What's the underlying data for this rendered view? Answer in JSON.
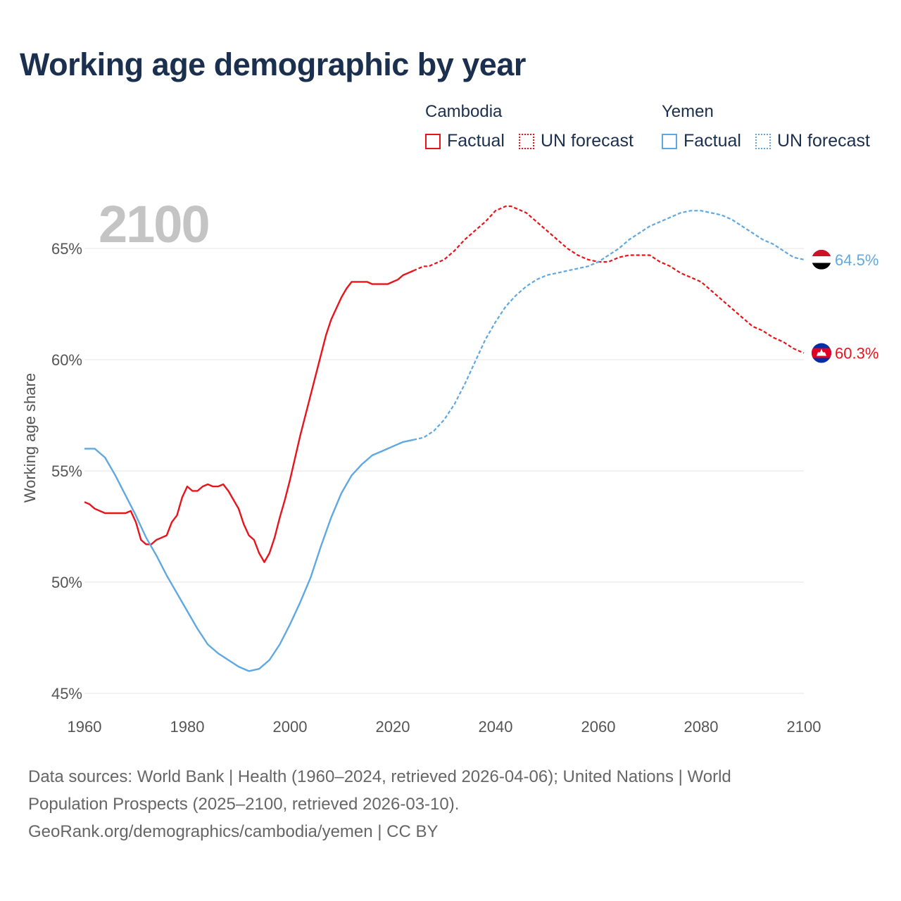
{
  "title": "Working age demographic by year",
  "year_display": "2100",
  "legend": {
    "groups": [
      {
        "name": "Cambodia",
        "color": "#e8141b",
        "factual_label": "Factual",
        "forecast_label": "UN forecast"
      },
      {
        "name": "Yemen",
        "color": "#5fa8e2",
        "factual_label": "Factual",
        "forecast_label": "UN forecast"
      }
    ]
  },
  "end_labels": {
    "cambodia": "60.3%",
    "yemen": "64.5%"
  },
  "footer": {
    "line1": "Data sources: World Bank | Health (1960–2024, retrieved 2026-04-06); United Nations | World",
    "line2": "Population Prospects (2025–2100, retrieved 2026-03-10).",
    "line3": "GeoRank.org/demographics/cambodia/yemen | CC BY"
  },
  "colors": {
    "cambodia": "#e8141b",
    "yemen": "#5fa8e2",
    "title": "#1b2f4e",
    "grid": "#e6e6e6",
    "axis_text": "#555555",
    "watermark": "#c4c4c4"
  },
  "chart_data": {
    "type": "line",
    "title": "Working age demographic by year",
    "xlabel": "",
    "ylabel": "Working age share",
    "xlim": [
      1960,
      2100
    ],
    "ylim": [
      45,
      67
    ],
    "x_ticks": [
      1960,
      1980,
      2000,
      2020,
      2040,
      2060,
      2080,
      2100
    ],
    "y_ticks": [
      45,
      50,
      55,
      60,
      65
    ],
    "y_tick_labels": [
      "45%",
      "50%",
      "55%",
      "60%",
      "65%"
    ],
    "factual_range": [
      1960,
      2024
    ],
    "forecast_range": [
      2024,
      2100
    ],
    "series": [
      {
        "name": "Cambodia",
        "color": "#e8141b",
        "x": [
          1960,
          1961,
          1962,
          1963,
          1964,
          1965,
          1966,
          1967,
          1968,
          1969,
          1970,
          1971,
          1972,
          1973,
          1974,
          1975,
          1976,
          1977,
          1978,
          1979,
          1980,
          1981,
          1982,
          1983,
          1984,
          1985,
          1986,
          1987,
          1988,
          1989,
          1990,
          1991,
          1992,
          1993,
          1994,
          1995,
          1996,
          1997,
          1998,
          1999,
          2000,
          2001,
          2002,
          2003,
          2004,
          2005,
          2006,
          2007,
          2008,
          2009,
          2010,
          2011,
          2012,
          2013,
          2014,
          2015,
          2016,
          2017,
          2018,
          2019,
          2020,
          2021,
          2022,
          2023,
          2024,
          2025,
          2026,
          2027,
          2028,
          2029,
          2030,
          2032,
          2034,
          2036,
          2038,
          2040,
          2041,
          2042,
          2043,
          2044,
          2046,
          2048,
          2050,
          2052,
          2054,
          2056,
          2058,
          2060,
          2062,
          2064,
          2066,
          2068,
          2070,
          2072,
          2074,
          2076,
          2078,
          2080,
          2082,
          2084,
          2086,
          2088,
          2090,
          2092,
          2094,
          2096,
          2098,
          2100
        ],
        "y": [
          53.6,
          53.5,
          53.3,
          53.2,
          53.1,
          53.1,
          53.1,
          53.1,
          53.1,
          53.2,
          52.7,
          51.9,
          51.7,
          51.7,
          51.9,
          52.0,
          52.1,
          52.7,
          53.0,
          53.8,
          54.3,
          54.1,
          54.1,
          54.3,
          54.4,
          54.3,
          54.3,
          54.4,
          54.1,
          53.7,
          53.3,
          52.6,
          52.1,
          51.9,
          51.3,
          50.9,
          51.3,
          52.0,
          52.9,
          53.7,
          54.6,
          55.6,
          56.6,
          57.5,
          58.4,
          59.3,
          60.2,
          61.1,
          61.8,
          62.3,
          62.8,
          63.2,
          63.5,
          63.5,
          63.5,
          63.5,
          63.4,
          63.4,
          63.4,
          63.4,
          63.5,
          63.6,
          63.8,
          63.9,
          64.0,
          64.1,
          64.2,
          64.2,
          64.3,
          64.4,
          64.5,
          64.9,
          65.4,
          65.8,
          66.2,
          66.7,
          66.8,
          66.9,
          66.9,
          66.8,
          66.6,
          66.2,
          65.8,
          65.4,
          65.0,
          64.7,
          64.5,
          64.4,
          64.4,
          64.6,
          64.7,
          64.7,
          64.7,
          64.4,
          64.2,
          63.9,
          63.7,
          63.5,
          63.1,
          62.7,
          62.3,
          61.9,
          61.5,
          61.3,
          61.0,
          60.8,
          60.5,
          60.3
        ]
      },
      {
        "name": "Yemen",
        "color": "#5fa8e2",
        "x": [
          1960,
          1962,
          1964,
          1966,
          1968,
          1970,
          1972,
          1974,
          1976,
          1978,
          1980,
          1982,
          1984,
          1986,
          1988,
          1990,
          1992,
          1994,
          1996,
          1998,
          2000,
          2002,
          2004,
          2006,
          2008,
          2010,
          2012,
          2014,
          2016,
          2018,
          2020,
          2022,
          2024,
          2026,
          2028,
          2030,
          2032,
          2034,
          2036,
          2038,
          2040,
          2042,
          2044,
          2046,
          2048,
          2050,
          2052,
          2054,
          2056,
          2058,
          2060,
          2062,
          2064,
          2066,
          2068,
          2070,
          2072,
          2074,
          2076,
          2078,
          2080,
          2082,
          2084,
          2086,
          2088,
          2090,
          2092,
          2094,
          2096,
          2098,
          2100
        ],
        "y": [
          56.0,
          56.0,
          55.6,
          54.8,
          53.9,
          53.0,
          52.0,
          51.2,
          50.3,
          49.5,
          48.7,
          47.9,
          47.2,
          46.8,
          46.5,
          46.2,
          46.0,
          46.1,
          46.5,
          47.2,
          48.1,
          49.1,
          50.2,
          51.6,
          52.9,
          54.0,
          54.8,
          55.3,
          55.7,
          55.9,
          56.1,
          56.3,
          56.4,
          56.5,
          56.8,
          57.3,
          58.0,
          58.9,
          59.9,
          60.9,
          61.7,
          62.4,
          62.9,
          63.3,
          63.6,
          63.8,
          63.9,
          64.0,
          64.1,
          64.2,
          64.4,
          64.7,
          65.0,
          65.4,
          65.7,
          66.0,
          66.2,
          66.4,
          66.6,
          66.7,
          66.7,
          66.6,
          66.5,
          66.3,
          66.0,
          65.7,
          65.4,
          65.2,
          64.9,
          64.6,
          64.5
        ]
      }
    ]
  }
}
